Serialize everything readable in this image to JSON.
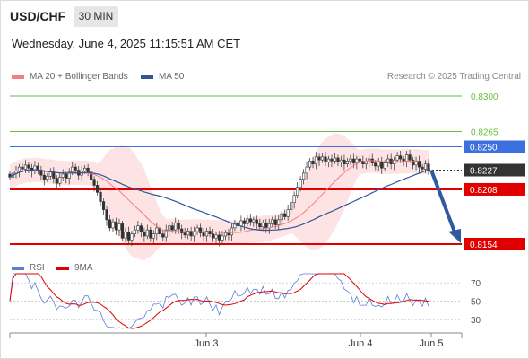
{
  "header": {
    "symbol": "USD/CHF",
    "timeframe": "30 MIN",
    "datetime": "Wednesday, June 4, 2025 11:15:51 AM CET",
    "credit": "Research © 2025 Trading Central"
  },
  "legend": {
    "main": [
      {
        "label": "MA 20 + Bollinger Bands",
        "color": "#f08080"
      },
      {
        "label": "MA 50",
        "color": "#2f5597"
      }
    ],
    "rsi": [
      {
        "label": "RSI",
        "color": "#5a7fd6"
      },
      {
        "label": "9MA",
        "color": "#e00000"
      }
    ]
  },
  "chart_data": [
    {
      "type": "candlestick",
      "series_name": "USD/CHF",
      "ylim": [
        0.8145,
        0.831
      ],
      "levels": [
        {
          "value": 0.83,
          "label": "0.8300",
          "color": "#6bbf3e",
          "style": "thin"
        },
        {
          "value": 0.8265,
          "label": "0.8265",
          "color": "#6bbf3e",
          "style": "thin"
        },
        {
          "value": 0.825,
          "label": "0.8250",
          "color": "#3c6fe0",
          "style": "thin",
          "badge": true
        },
        {
          "value": 0.8227,
          "label": "0.8227",
          "color": "#333333",
          "style": "dotted",
          "badge": true
        },
        {
          "value": 0.8208,
          "label": "0.8208",
          "color": "#e00000",
          "style": "thick",
          "badge": true
        },
        {
          "value": 0.8154,
          "label": "0.8154",
          "color": "#e00000",
          "style": "thick",
          "badge": true
        }
      ],
      "x_ticks": [
        "Jun 3",
        "Jun 4",
        "Jun 5"
      ],
      "closes": [
        0.822,
        0.8224,
        0.8226,
        0.823,
        0.8228,
        0.8232,
        0.8229,
        0.8226,
        0.8231,
        0.8227,
        0.8222,
        0.8218,
        0.8221,
        0.8225,
        0.8219,
        0.8214,
        0.822,
        0.8223,
        0.8219,
        0.8225,
        0.823,
        0.8227,
        0.8222,
        0.8226,
        0.8229,
        0.8225,
        0.8218,
        0.8212,
        0.8205,
        0.8196,
        0.8188,
        0.8178,
        0.817,
        0.8176,
        0.8168,
        0.8174,
        0.816,
        0.8166,
        0.8158,
        0.8164,
        0.8168,
        0.8172,
        0.8166,
        0.8162,
        0.8168,
        0.816,
        0.8164,
        0.817,
        0.8164,
        0.8161,
        0.8168,
        0.8172,
        0.8168,
        0.8175,
        0.8169,
        0.8165,
        0.8163,
        0.8167,
        0.8162,
        0.8166,
        0.817,
        0.8165,
        0.8162,
        0.8167,
        0.8164,
        0.816,
        0.8163,
        0.8158,
        0.8162,
        0.8165,
        0.8163,
        0.817,
        0.8175,
        0.8172,
        0.8177,
        0.8174,
        0.8179,
        0.8176,
        0.8178,
        0.8174,
        0.8171,
        0.8175,
        0.817,
        0.8174,
        0.8178,
        0.8173,
        0.8178,
        0.8184,
        0.8181,
        0.8188,
        0.8195,
        0.8202,
        0.821,
        0.8218,
        0.8224,
        0.823,
        0.8236,
        0.8233,
        0.824,
        0.8237,
        0.824,
        0.8235,
        0.8238,
        0.8236,
        0.8239,
        0.8235,
        0.8237,
        0.8233,
        0.8236,
        0.8238,
        0.8234,
        0.8238,
        0.8236,
        0.8233,
        0.8236,
        0.8238,
        0.8234,
        0.8231,
        0.8235,
        0.8229,
        0.8234,
        0.8238,
        0.8233,
        0.8237,
        0.8241,
        0.8238,
        0.8236,
        0.8242,
        0.8237,
        0.8232,
        0.8236,
        0.823,
        0.8228,
        0.8233,
        0.8227
      ],
      "forecast": {
        "from": 0.8227,
        "to": 0.8154
      }
    },
    {
      "type": "line",
      "name": "RSI",
      "ylim": [
        20,
        80
      ],
      "y_ticks": [
        70,
        50,
        30
      ]
    }
  ]
}
